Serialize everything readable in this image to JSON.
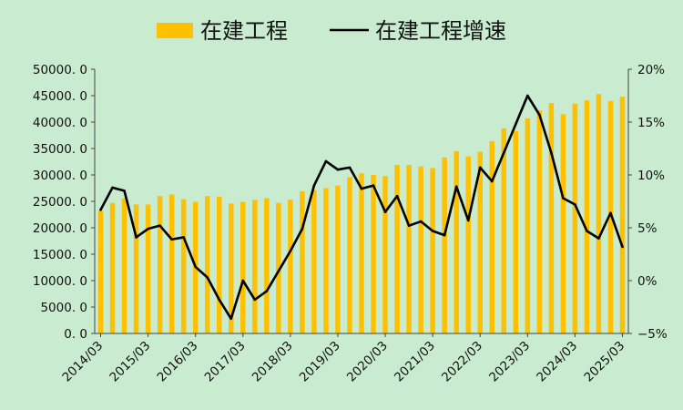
{
  "chart_data": {
    "type": "bar",
    "legend": {
      "placement": "top-center",
      "bar_label": "在建工程",
      "line_label": "在建工程增速"
    },
    "x": [
      "2014/03",
      "2014/06",
      "2014/09",
      "2014/12",
      "2015/03",
      "2015/06",
      "2015/09",
      "2015/12",
      "2016/03",
      "2016/06",
      "2016/09",
      "2016/12",
      "2017/03",
      "2017/06",
      "2017/09",
      "2017/12",
      "2018/03",
      "2018/06",
      "2018/09",
      "2018/12",
      "2019/03",
      "2019/06",
      "2019/09",
      "2019/12",
      "2020/03",
      "2020/06",
      "2020/09",
      "2020/12",
      "2021/03",
      "2021/06",
      "2021/09",
      "2021/12",
      "2022/03",
      "2022/06",
      "2022/09",
      "2022/12",
      "2023/03",
      "2023/06",
      "2023/09",
      "2023/12",
      "2024/03",
      "2024/06",
      "2024/09",
      "2024/12",
      "2025/03"
    ],
    "xticks": [
      "2014/03",
      "2015/03",
      "2016/03",
      "2017/03",
      "2018/03",
      "2019/03",
      "2020/03",
      "2021/03",
      "2022/03",
      "2023/03",
      "2024/03",
      "2025/03"
    ],
    "series": [
      {
        "name": "在建工程",
        "type": "bar",
        "color": "#ffc000",
        "axis": "left",
        "values": [
          23200,
          24700,
          25600,
          24400,
          24400,
          26000,
          26300,
          25400,
          24900,
          26000,
          25900,
          24600,
          24900,
          25300,
          25600,
          24700,
          25300,
          26900,
          27100,
          27500,
          28000,
          29600,
          30300,
          30000,
          29800,
          31900,
          31900,
          31600,
          31300,
          33300,
          34500,
          33500,
          34400,
          36400,
          38800,
          38300,
          40700,
          42200,
          43600,
          41500,
          43500,
          44100,
          45300,
          44000,
          44800
        ]
      },
      {
        "name": "在建工程增速",
        "type": "line",
        "color": "#000000",
        "axis": "right",
        "values": [
          6.7,
          8.8,
          8.5,
          4.1,
          4.9,
          5.2,
          3.9,
          4.1,
          1.3,
          0.3,
          -1.8,
          -3.6,
          0.0,
          -1.8,
          -1.0,
          0.9,
          2.8,
          4.9,
          9.0,
          11.3,
          10.5,
          10.7,
          8.7,
          9.0,
          6.5,
          8.0,
          5.2,
          5.6,
          4.7,
          4.3,
          8.9,
          5.7,
          10.7,
          9.4,
          12.1,
          14.8,
          17.5,
          15.7,
          12.1,
          7.8,
          7.2,
          4.7,
          4.0,
          6.4,
          3.2
        ]
      }
    ],
    "y_left": {
      "lim": [
        0,
        50000
      ],
      "ticks": [
        "0. 0",
        "5000. 0",
        "10000. 0",
        "15000. 0",
        "20000. 0",
        "25000. 0",
        "30000. 0",
        "35000. 0",
        "40000. 0",
        "45000. 0",
        "50000. 0"
      ]
    },
    "y_right": {
      "lim": [
        -5,
        20
      ],
      "ticks": [
        "−5%",
        "0%",
        "5%",
        "10%",
        "15%",
        "20%"
      ]
    },
    "grid": false
  }
}
